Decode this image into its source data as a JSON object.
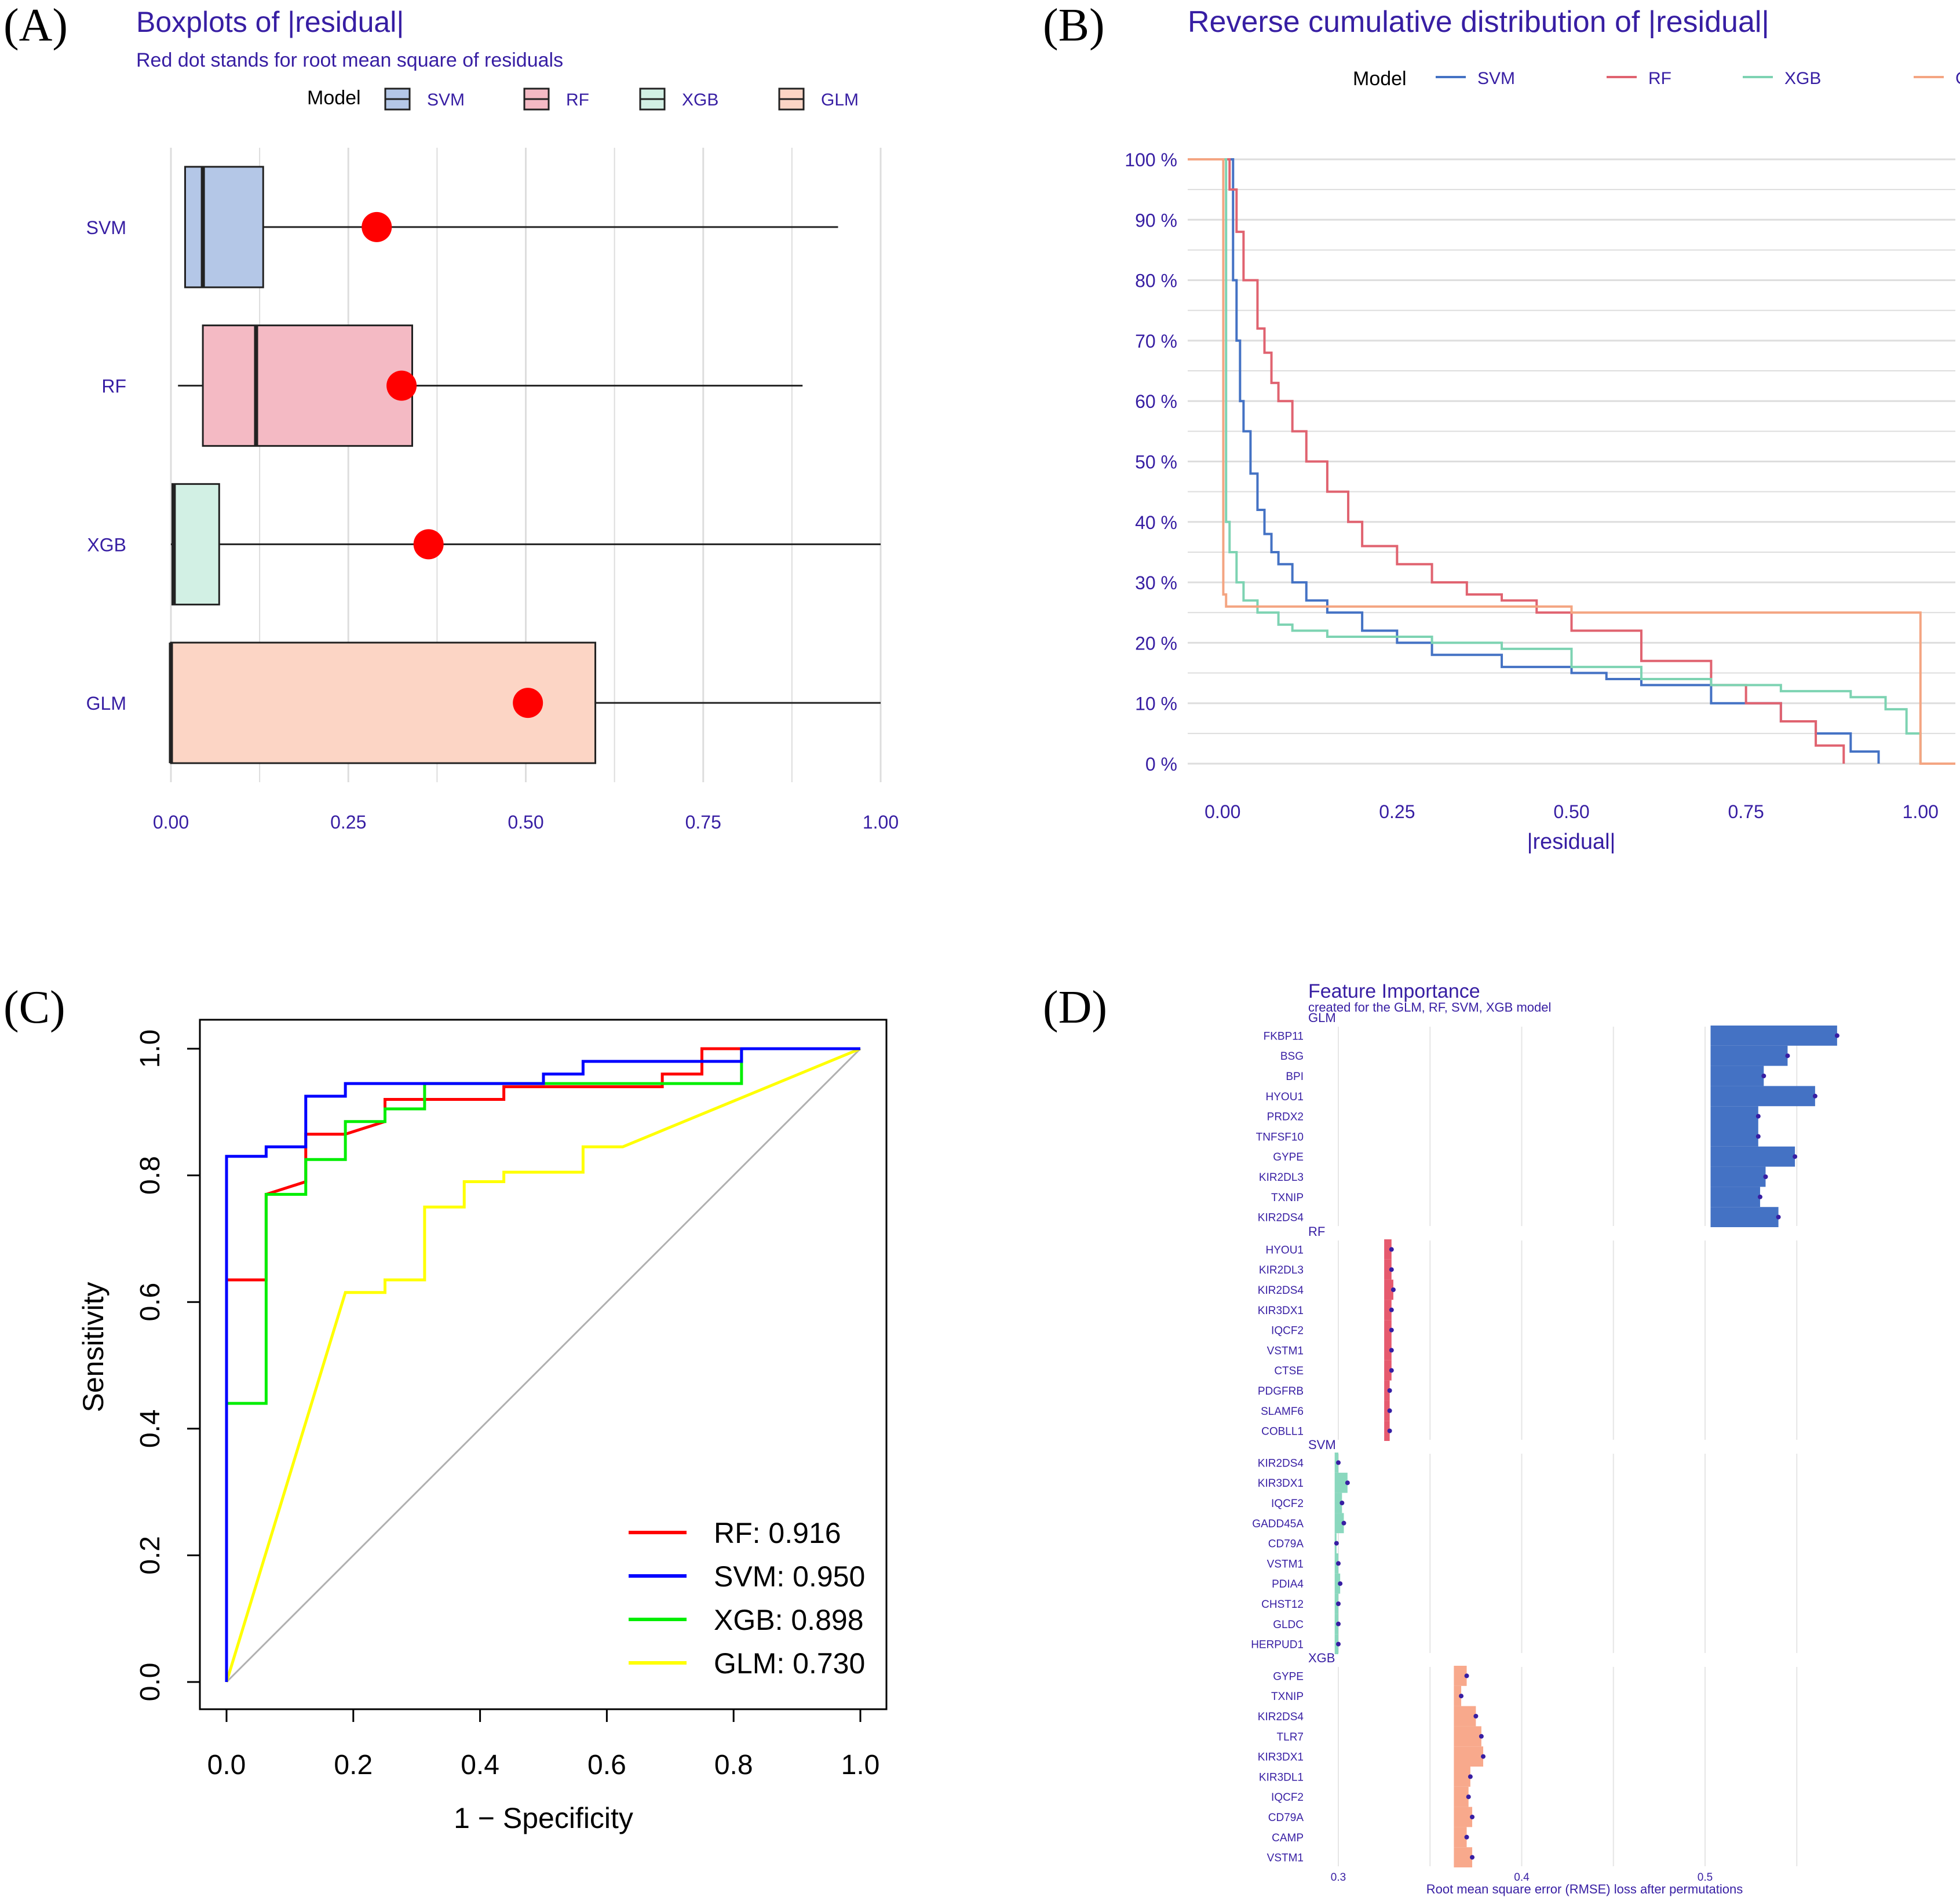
{
  "colors": {
    "svm": "#4472C4",
    "rf": "#E06370",
    "xgb": "#7DD3B2",
    "glm": "#F4A582",
    "svm_fill": "#B4C7E7",
    "rf_fill": "#F4BAC4",
    "xgb_fill": "#D2F0E4",
    "glm_fill": "#FCD5C5",
    "rmse_dot": "#FF0000",
    "dalex_text": "#371EA3",
    "roc_rf": "#FF0000",
    "roc_svm": "#0000FF",
    "roc_xgb": "#00EE00",
    "roc_glm": "#FFFF00",
    "bar_glm": "#4472C4",
    "bar_rf": "#E65A6E",
    "bar_svm": "#8AD8BE",
    "bar_xgb": "#F8A98C"
  },
  "panels": {
    "a": "(A)",
    "b": "(B)",
    "c": "(C)",
    "d": "(D)"
  },
  "chart_data": [
    {
      "id": "A",
      "type": "box",
      "title": "Boxplots of |residual|",
      "subtitle": "Red dot stands for root mean square of residuals",
      "legend_title": "Model",
      "legend": [
        "SVM",
        "RF",
        "XGB",
        "GLM"
      ],
      "categories": [
        "SVM",
        "RF",
        "XGB",
        "GLM"
      ],
      "boxes": [
        {
          "name": "SVM",
          "whisker_low": 0.02,
          "q1": 0.02,
          "median": 0.045,
          "q3": 0.13,
          "whisker_high": 0.94,
          "rmse": 0.29
        },
        {
          "name": "RF",
          "whisker_low": 0.01,
          "q1": 0.045,
          "median": 0.12,
          "q3": 0.34,
          "whisker_high": 0.89,
          "rmse": 0.325
        },
        {
          "name": "XGB",
          "whisker_low": 0.0,
          "q1": 0.002,
          "median": 0.004,
          "q3": 0.068,
          "whisker_high": 1.0,
          "rmse": 0.363
        },
        {
          "name": "GLM",
          "whisker_low": 0.0,
          "q1": 0.0,
          "median": 0.0,
          "q3": 0.598,
          "whisker_high": 1.0,
          "rmse": 0.503
        }
      ],
      "xlim": [
        0,
        1
      ],
      "xticks": [
        "0.00",
        "0.25",
        "0.50",
        "0.75",
        "1.00"
      ]
    },
    {
      "id": "B",
      "type": "line",
      "title": "Reverse cumulative distribution of |residual|",
      "legend_title": "Model",
      "legend": [
        "SVM",
        "RF",
        "XGB",
        "GLM"
      ],
      "xlabel": "|residual|",
      "xlim": [
        -0.05,
        1.05
      ],
      "ylim": [
        0,
        100
      ],
      "xticks": [
        "0.00",
        "0.25",
        "0.50",
        "0.75",
        "1.00"
      ],
      "yticks": [
        "0 %",
        "10 %",
        "20 %",
        "30 %",
        "40 %",
        "50 %",
        "60 %",
        "70 %",
        "80 %",
        "90 %",
        "100 %"
      ],
      "series": [
        {
          "name": "SVM",
          "x": [
            0.01,
            0.015,
            0.02,
            0.025,
            0.03,
            0.04,
            0.05,
            0.06,
            0.07,
            0.08,
            0.1,
            0.12,
            0.15,
            0.2,
            0.25,
            0.3,
            0.4,
            0.5,
            0.55,
            0.6,
            0.7,
            0.8,
            0.85,
            0.9,
            0.94
          ],
          "y": [
            100,
            80,
            70,
            60,
            55,
            48,
            42,
            38,
            35,
            33,
            30,
            27,
            25,
            22,
            20,
            18,
            16,
            15,
            14,
            13,
            10,
            7,
            5,
            2,
            0
          ]
        },
        {
          "name": "RF",
          "x": [
            0.005,
            0.01,
            0.02,
            0.03,
            0.05,
            0.06,
            0.07,
            0.08,
            0.1,
            0.12,
            0.15,
            0.18,
            0.2,
            0.25,
            0.3,
            0.35,
            0.4,
            0.45,
            0.5,
            0.6,
            0.7,
            0.75,
            0.8,
            0.85,
            0.89
          ],
          "y": [
            100,
            95,
            88,
            80,
            72,
            68,
            63,
            60,
            55,
            50,
            45,
            40,
            36,
            33,
            30,
            28,
            27,
            25,
            22,
            17,
            13,
            10,
            7,
            3,
            0
          ]
        },
        {
          "name": "XGB",
          "x": [
            0.0,
            0.005,
            0.01,
            0.02,
            0.03,
            0.05,
            0.08,
            0.1,
            0.15,
            0.2,
            0.3,
            0.4,
            0.5,
            0.6,
            0.7,
            0.8,
            0.9,
            0.95,
            0.98,
            1.0
          ],
          "y": [
            100,
            40,
            35,
            30,
            27,
            25,
            23,
            22,
            21,
            21,
            20,
            19,
            16,
            14,
            13,
            12,
            11,
            9,
            5,
            0
          ]
        },
        {
          "name": "GLM",
          "x": [
            -0.05,
            0.0,
            0.001,
            0.005,
            0.5,
            1.0,
            1.0,
            1.05
          ],
          "y": [
            100,
            100,
            28,
            26,
            25,
            25,
            0,
            0
          ]
        }
      ]
    },
    {
      "id": "C",
      "type": "line",
      "xlabel": "1 − Specificity",
      "ylabel": "Sensitivity",
      "xlim": [
        0,
        1
      ],
      "ylim": [
        0,
        1
      ],
      "xticks": [
        "0.0",
        "0.2",
        "0.4",
        "0.6",
        "0.8",
        "1.0"
      ],
      "yticks": [
        "0.0",
        "0.2",
        "0.4",
        "0.6",
        "0.8",
        "1.0"
      ],
      "legend": [
        "RF: 0.916",
        "SVM: 0.950",
        "XGB: 0.898",
        "GLM: 0.730"
      ],
      "series": [
        {
          "name": "RF",
          "auc": 0.916,
          "x": [
            0,
            0,
            0.0625,
            0.0625,
            0.125,
            0.125,
            0.1875,
            0.25,
            0.25,
            0.4375,
            0.4375,
            0.6875,
            0.6875,
            0.75,
            0.75,
            0.8125,
            1.0
          ],
          "y": [
            0,
            0.635,
            0.635,
            0.77,
            0.79,
            0.865,
            0.865,
            0.885,
            0.92,
            0.92,
            0.94,
            0.94,
            0.96,
            0.96,
            1.0,
            1.0,
            1.0
          ]
        },
        {
          "name": "SVM",
          "auc": 0.95,
          "x": [
            0,
            0,
            0.0625,
            0.0625,
            0.125,
            0.125,
            0.1875,
            0.1875,
            0.3125,
            0.5,
            0.5,
            0.5625,
            0.5625,
            0.8125,
            0.8125,
            1.0
          ],
          "y": [
            0,
            0.83,
            0.83,
            0.845,
            0.845,
            0.925,
            0.925,
            0.945,
            0.945,
            0.945,
            0.96,
            0.96,
            0.98,
            0.98,
            1.0,
            1.0
          ]
        },
        {
          "name": "XGB",
          "auc": 0.898,
          "x": [
            0,
            0,
            0.0625,
            0.0625,
            0.125,
            0.125,
            0.1875,
            0.1875,
            0.25,
            0.25,
            0.3125,
            0.3125,
            0.8125,
            0.8125,
            1.0
          ],
          "y": [
            0,
            0.44,
            0.44,
            0.77,
            0.77,
            0.825,
            0.825,
            0.885,
            0.885,
            0.905,
            0.905,
            0.945,
            0.945,
            1.0,
            1.0
          ]
        },
        {
          "name": "GLM",
          "auc": 0.73,
          "x": [
            0,
            0.1875,
            0.25,
            0.25,
            0.3125,
            0.3125,
            0.375,
            0.375,
            0.4375,
            0.4375,
            0.5625,
            0.5625,
            0.625,
            1.0
          ],
          "y": [
            0,
            0.615,
            0.615,
            0.635,
            0.635,
            0.75,
            0.75,
            0.79,
            0.79,
            0.805,
            0.805,
            0.845,
            0.845,
            1.0
          ]
        }
      ],
      "diagonal": true
    },
    {
      "id": "D",
      "type": "bar",
      "title": "Feature Importance",
      "subtitle": "created for the GLM, RF, SVM, XGB model",
      "xlabel": "Root mean square error (RMSE) loss after permutations",
      "xlim": [
        0.295,
        0.56
      ],
      "xticks": [
        "0.3",
        "0.4",
        "0.5"
      ],
      "xtick_values": [
        0.3,
        0.4,
        0.5
      ],
      "xgrid": [
        0.3,
        0.35,
        0.4,
        0.45,
        0.5,
        0.55
      ],
      "facets": [
        {
          "name": "GLM",
          "baseline": 0.503,
          "categories": [
            "FKBP11",
            "BSG",
            "BPI",
            "HYOU1",
            "PRDX2",
            "TNFSF10",
            "GYPE",
            "KIR2DL3",
            "TXNIP",
            "KIR2DS4"
          ],
          "values": [
            0.572,
            0.545,
            0.532,
            0.56,
            0.529,
            0.529,
            0.549,
            0.533,
            0.53,
            0.54
          ]
        },
        {
          "name": "RF",
          "baseline": 0.325,
          "categories": [
            "HYOU1",
            "KIR2DL3",
            "KIR2DS4",
            "KIR3DX1",
            "IQCF2",
            "VSTM1",
            "CTSE",
            "PDGFRB",
            "SLAMF6",
            "COBLL1"
          ],
          "values": [
            0.329,
            0.329,
            0.33,
            0.329,
            0.329,
            0.329,
            0.329,
            0.328,
            0.328,
            0.328
          ]
        },
        {
          "name": "SVM",
          "baseline": 0.298,
          "categories": [
            "KIR2DS4",
            "KIR3DX1",
            "IQCF2",
            "GADD45A",
            "CD79A",
            "VSTM1",
            "PDIA4",
            "CHST12",
            "GLDC",
            "HERPUD1"
          ],
          "values": [
            0.3,
            0.305,
            0.302,
            0.303,
            0.299,
            0.3,
            0.301,
            0.3,
            0.3,
            0.3
          ]
        },
        {
          "name": "XGB",
          "baseline": 0.363,
          "categories": [
            "GYPE",
            "TXNIP",
            "KIR2DS4",
            "TLR7",
            "KIR3DX1",
            "KIR3DL1",
            "IQCF2",
            "CD79A",
            "CAMP",
            "VSTM1"
          ],
          "values": [
            0.37,
            0.367,
            0.375,
            0.378,
            0.379,
            0.372,
            0.371,
            0.373,
            0.37,
            0.373
          ]
        }
      ]
    }
  ]
}
